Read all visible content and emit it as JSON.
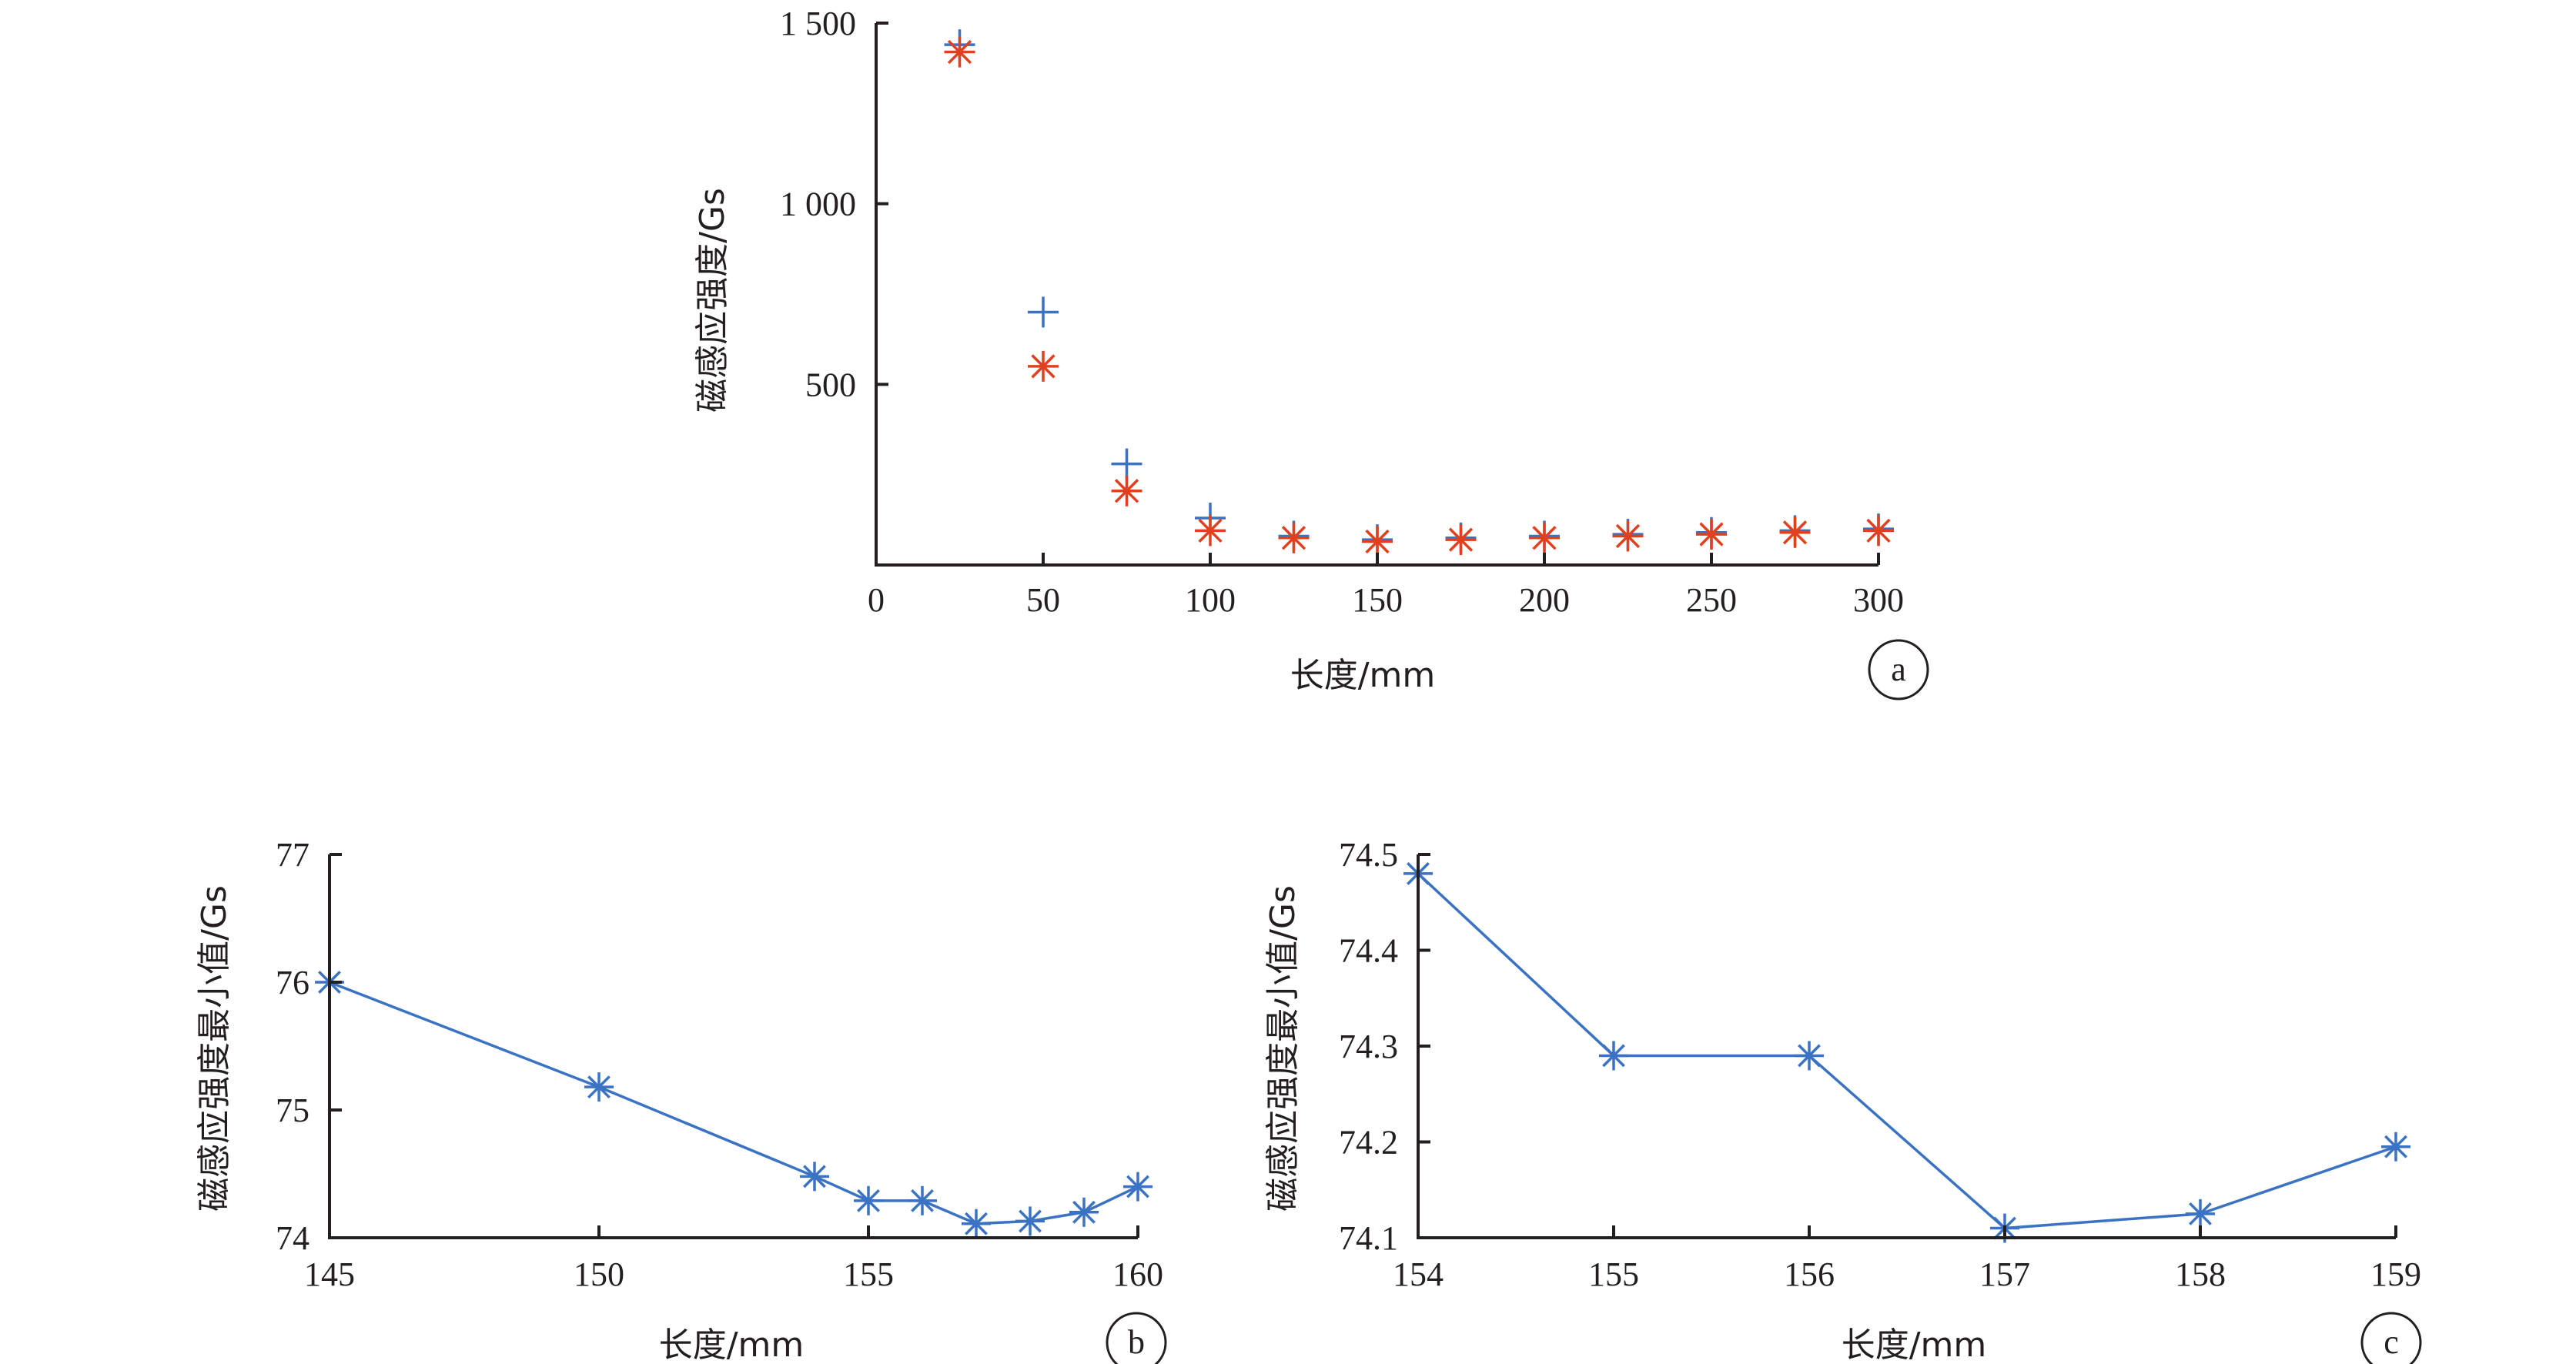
{
  "colors": {
    "blue": "#3a72c4",
    "red": "#e0401e",
    "axis": "#231f20"
  },
  "chart_data": [
    {
      "id": "a",
      "type": "scatter",
      "panel_label": "a",
      "xlabel": "长度/mm",
      "ylabel": "磁感应强度/Gs",
      "xlim": [
        0,
        300
      ],
      "ylim": [
        0,
        1500
      ],
      "xticks": [
        0,
        50,
        100,
        150,
        200,
        250,
        300
      ],
      "xtick_labels": [
        "0",
        "50",
        "100",
        "150",
        "200",
        "250",
        "300"
      ],
      "yticks": [
        500,
        1000,
        1500
      ],
      "ytick_labels": [
        "500",
        "1 000",
        "1 500"
      ],
      "series": [
        {
          "name": "plus",
          "marker": "plus",
          "color": "#3a72c4",
          "x": [
            25,
            50,
            75,
            100,
            125,
            150,
            175,
            200,
            225,
            250,
            275,
            300
          ],
          "y": [
            1440,
            700,
            280,
            130,
            80,
            70,
            75,
            80,
            85,
            90,
            95,
            100
          ]
        },
        {
          "name": "asterisk",
          "marker": "asterisk",
          "color": "#e0401e",
          "x": [
            25,
            50,
            75,
            100,
            125,
            150,
            175,
            200,
            225,
            250,
            275,
            300
          ],
          "y": [
            1420,
            550,
            205,
            95,
            75,
            65,
            70,
            75,
            80,
            85,
            90,
            95
          ]
        }
      ]
    },
    {
      "id": "b",
      "type": "line",
      "panel_label": "b",
      "xlabel": "长度/mm",
      "ylabel": "磁感应强度最小值/Gs",
      "xlim": [
        145,
        160
      ],
      "ylim": [
        74,
        77
      ],
      "xticks": [
        145,
        150,
        155,
        160
      ],
      "xtick_labels": [
        "145",
        "150",
        "155",
        "160"
      ],
      "yticks": [
        74,
        75,
        76,
        77
      ],
      "ytick_labels": [
        "74",
        "75",
        "76",
        "77"
      ],
      "series": [
        {
          "name": "min",
          "marker": "asterisk",
          "color": "#3a72c4",
          "x": [
            145,
            150,
            154,
            155,
            156,
            157,
            158,
            159,
            160
          ],
          "y": [
            76.0,
            75.18,
            74.48,
            74.29,
            74.29,
            74.11,
            74.13,
            74.2,
            74.4
          ]
        }
      ]
    },
    {
      "id": "c",
      "type": "line",
      "panel_label": "c",
      "xlabel": "长度/mm",
      "ylabel": "磁感应强度最小值/Gs",
      "xlim": [
        154,
        159
      ],
      "ylim": [
        74.1,
        74.5
      ],
      "xticks": [
        154,
        155,
        156,
        157,
        158,
        159
      ],
      "xtick_labels": [
        "154",
        "155",
        "156",
        "157",
        "158",
        "159"
      ],
      "yticks": [
        74.1,
        74.2,
        74.3,
        74.4,
        74.5
      ],
      "ytick_labels": [
        "74.1",
        "74.2",
        "74.3",
        "74.4",
        "74.5"
      ],
      "series": [
        {
          "name": "min",
          "marker": "asterisk",
          "color": "#3a72c4",
          "x": [
            154,
            155,
            156,
            157,
            158,
            159
          ],
          "y": [
            74.48,
            74.29,
            74.29,
            74.11,
            74.125,
            74.195
          ]
        }
      ]
    }
  ]
}
